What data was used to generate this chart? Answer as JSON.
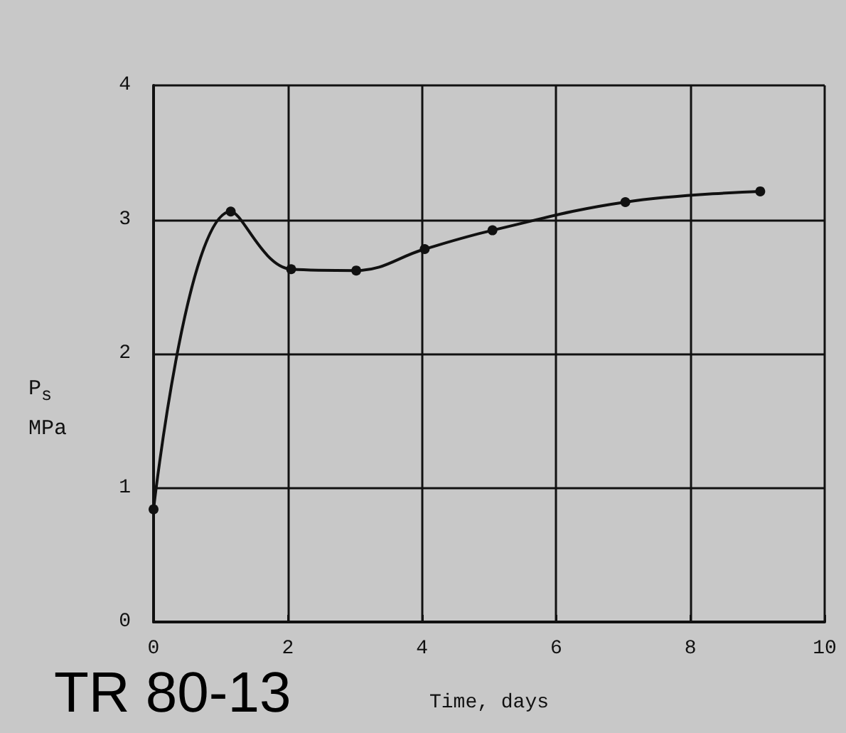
{
  "chart_data": {
    "type": "line",
    "xlabel": "Time, days",
    "ylabel": "P$_{s}$\nMPa",
    "annotations": [
      "TR 80-13"
    ],
    "x": [
      0,
      1.15,
      2.05,
      3.02,
      4.04,
      5.05,
      7.03,
      9.04
    ],
    "series": [
      {
        "color": "#111111",
        "values": [
          0.84,
          3.06,
          2.63,
          2.62,
          2.78,
          2.92,
          3.13,
          3.21
        ]
      }
    ],
    "xlim": [
      0,
      10
    ],
    "xticks": [
      0,
      2,
      4,
      6,
      8,
      10
    ],
    "ylim": [
      0,
      4
    ],
    "yticks": [
      0,
      1,
      2,
      3,
      4
    ],
    "grid": true,
    "marker": "circle",
    "line_style": "solid"
  }
}
